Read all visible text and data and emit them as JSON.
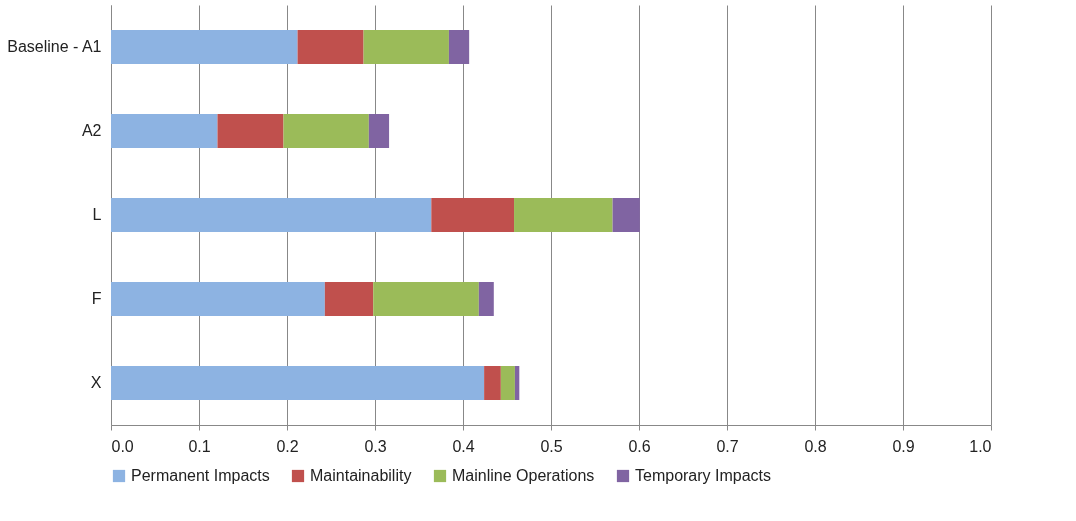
{
  "chart_data": {
    "type": "bar",
    "orientation": "horizontal",
    "stacked": true,
    "categories": [
      "Baseline - A1",
      "A2",
      "L",
      "F",
      "X"
    ],
    "series": [
      {
        "name": "Permanent Impacts",
        "color": "#8db3e2",
        "values": [
          0.212,
          0.121,
          0.364,
          0.243,
          0.424
        ]
      },
      {
        "name": "Maintainability",
        "color": "#c0504d",
        "values": [
          0.075,
          0.075,
          0.094,
          0.055,
          0.019
        ]
      },
      {
        "name": "Mainline Operations",
        "color": "#9bbb59",
        "values": [
          0.097,
          0.097,
          0.112,
          0.12,
          0.016
        ]
      },
      {
        "name": "Temporary Impacts",
        "color": "#8064a2",
        "values": [
          0.023,
          0.023,
          0.031,
          0.017,
          0.005
        ]
      }
    ],
    "xlim": [
      0,
      1
    ],
    "xticks": [
      {
        "value": 0,
        "label": "0.0"
      },
      {
        "value": 0.1,
        "label": "0.1"
      },
      {
        "value": 0.2,
        "label": "0.2"
      },
      {
        "value": 0.3,
        "label": "0.3"
      },
      {
        "value": 0.4,
        "label": "0.4"
      },
      {
        "value": 0.5,
        "label": "0.5"
      },
      {
        "value": 0.6,
        "label": "0.6"
      },
      {
        "value": 0.7,
        "label": "0.7"
      },
      {
        "value": 0.8,
        "label": "0.8"
      },
      {
        "value": 0.9,
        "label": "0.9"
      },
      {
        "value": 1,
        "label": "1.0"
      }
    ],
    "grid": "x",
    "legend": "bottom"
  }
}
